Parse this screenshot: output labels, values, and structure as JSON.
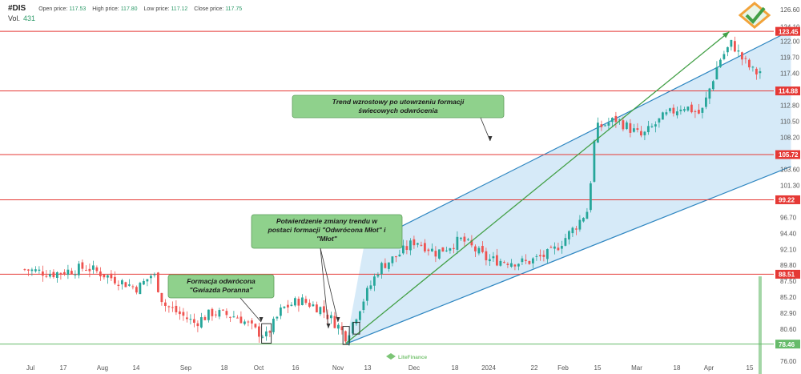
{
  "header": {
    "symbol": "#DIS",
    "open_label": "Open price:",
    "open_value": "117.53",
    "high_label": "High price:",
    "high_value": "117.80",
    "low_label": "Low price:",
    "low_value": "117.12",
    "close_label": "Close price:",
    "close_value": "117.75",
    "vol_label": "Vol.",
    "vol_value": "431"
  },
  "colors": {
    "up": "#26a69a",
    "down": "#ef5350",
    "level": "#e53935",
    "channel": "#2e86c1",
    "channel_fill": "#cfe6f7",
    "trend": "#43a047",
    "support": "#66bb6a",
    "annotation": "#8fd18c"
  },
  "chart_data": {
    "type": "candlestick",
    "ylim": [
      76.0,
      127.5
    ],
    "y_ticks": [
      "126.60",
      "124.10",
      "122.00",
      "119.70",
      "117.40",
      "115.10",
      "112.80",
      "110.50",
      "108.20",
      "105.90",
      "103.60",
      "101.30",
      "99.00",
      "96.70",
      "94.40",
      "92.10",
      "89.80",
      "87.50",
      "85.20",
      "82.90",
      "80.60",
      "78.30",
      "76.00"
    ],
    "x_labels": [
      "Jul",
      "17",
      "Aug",
      "14",
      "Sep",
      "18",
      "Oct",
      "16",
      "Nov",
      "13",
      "Dec",
      "18",
      "2024",
      "22",
      "Feb",
      "15",
      "Mar",
      "18",
      "Apr",
      "15"
    ],
    "levels": [
      {
        "value": 123.45,
        "label": "123.45"
      },
      {
        "value": 114.88,
        "label": "114.88"
      },
      {
        "value": 105.72,
        "label": "105.72"
      },
      {
        "value": 99.22,
        "label": "99.22"
      },
      {
        "value": 88.51,
        "label": "88.51"
      },
      {
        "value": 78.46,
        "label": "78.46"
      }
    ],
    "channel": {
      "upper": [
        [
          "2023-11-10",
          92.7
        ],
        [
          "2024-04-24",
          123.6
        ]
      ],
      "lower": [
        [
          "2023-11-03",
          78.5
        ],
        [
          "2024-04-24",
          104.0
        ]
      ]
    },
    "trend_arrow": [
      [
        "2023-11-03",
        78.6
      ],
      [
        "2024-03-31",
        123.4
      ]
    ],
    "close_path": [
      [
        "2023-07-01",
        89.2
      ],
      [
        "2023-07-12",
        88.6
      ],
      [
        "2023-07-25",
        89.5
      ],
      [
        "2023-08-05",
        87.8
      ],
      [
        "2023-08-14",
        86.5
      ],
      [
        "2023-08-20",
        88.7
      ],
      [
        "2023-08-24",
        84.2
      ],
      [
        "2023-09-05",
        81.5
      ],
      [
        "2023-09-12",
        83.0
      ],
      [
        "2023-09-22",
        82.4
      ],
      [
        "2023-09-29",
        80.3
      ],
      [
        "2023-10-03",
        79.6
      ],
      [
        "2023-10-09",
        83.5
      ],
      [
        "2023-10-16",
        84.8
      ],
      [
        "2023-10-24",
        83.6
      ],
      [
        "2023-10-31",
        81.0
      ],
      [
        "2023-11-03",
        79.5
      ],
      [
        "2023-11-09",
        84.3
      ],
      [
        "2023-11-16",
        89.5
      ],
      [
        "2023-11-23",
        91.2
      ],
      [
        "2023-11-30",
        93.4
      ],
      [
        "2023-12-08",
        91.6
      ],
      [
        "2023-12-18",
        93.5
      ],
      [
        "2023-12-28",
        90.6
      ],
      [
        "2024-01-12",
        90.2
      ],
      [
        "2024-01-22",
        91.6
      ],
      [
        "2024-01-31",
        95.3
      ],
      [
        "2024-02-05",
        97.8
      ],
      [
        "2024-02-08",
        109.4
      ],
      [
        "2024-02-16",
        110.8
      ],
      [
        "2024-02-26",
        108.3
      ],
      [
        "2024-03-05",
        111.0
      ],
      [
        "2024-03-13",
        112.8
      ],
      [
        "2024-03-20",
        111.5
      ],
      [
        "2024-03-27",
        119.2
      ],
      [
        "2024-04-01",
        121.8
      ],
      [
        "2024-04-05",
        119.5
      ],
      [
        "2024-04-10",
        117.4
      ],
      [
        "2024-04-12",
        117.75
      ]
    ],
    "volume_bar": {
      "date": "2024-04-12",
      "label": ""
    },
    "annotations": [
      {
        "text": "Trend wzrostowy po utowrzeniu formacji świecowych odwrócenia"
      },
      {
        "text": "Potwierdzenie zmiany trendu w postaci formacji \"Odwrócona Młot\" i \"Młot\""
      },
      {
        "text": "Formacja odwrócona \"Gwiazda Poranna\""
      }
    ]
  },
  "watermark": {
    "text": "LiteFinance"
  }
}
